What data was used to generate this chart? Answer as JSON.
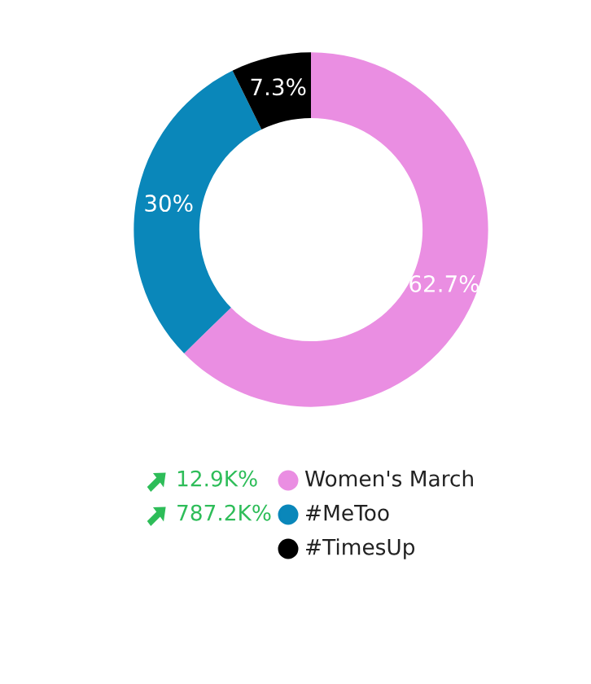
{
  "chart_data": {
    "type": "donut",
    "categories": [
      "Women's March",
      "#MeToo",
      "#TimesUp"
    ],
    "values": [
      62.7,
      30,
      7.3
    ],
    "colors": [
      "#ea8ee2",
      "#0a87ba",
      "#000000"
    ],
    "value_labels": [
      "62.7%",
      "30%",
      "7.3%"
    ],
    "legend": "bottom",
    "annotations": [
      "12.9K%",
      "787.2K%"
    ]
  }
}
